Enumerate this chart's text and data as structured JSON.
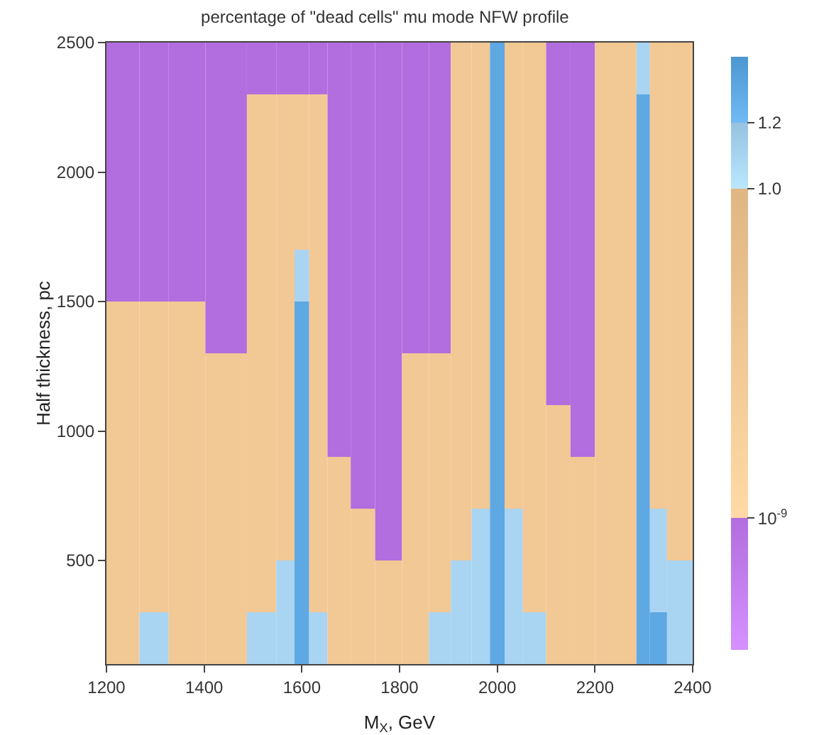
{
  "chart_data": {
    "type": "heatmap",
    "title": "percentage of \"dead cells\" mu mode NFW profile",
    "xlabel": "M$_{X}$, GeV",
    "ylabel": "Half thickness, pc",
    "x": [
      1235,
      1300,
      1355,
      1450,
      1525,
      1570,
      1600,
      1630,
      1675,
      1725,
      1775,
      1835,
      1885,
      1925,
      1970,
      2000,
      2030,
      2075,
      2125,
      2175,
      2225,
      2270,
      2300,
      2325,
      2370
    ],
    "y": [
      2400,
      2200,
      2000,
      1800,
      1600,
      1400,
      1200,
      1000,
      800,
      600,
      400,
      200
    ],
    "cells": [
      [
        0,
        0,
        0,
        0,
        0,
        0,
        0,
        0,
        0,
        0,
        0,
        0,
        0,
        0.5,
        0.5,
        1.3,
        0.5,
        0.5,
        0,
        0,
        0.5,
        0.5,
        1.1,
        0.5,
        0.5
      ],
      [
        0,
        0,
        0,
        0,
        0.5,
        0.5,
        0.5,
        0.5,
        0,
        0,
        0,
        0,
        0,
        0.5,
        0.5,
        1.3,
        0.5,
        0.5,
        0,
        0,
        0.5,
        0.5,
        1.3,
        0.5,
        0.5
      ],
      [
        0,
        0,
        0,
        0,
        0.5,
        0.5,
        0.5,
        0.5,
        0,
        0,
        0,
        0,
        0,
        0.5,
        0.5,
        1.3,
        0.5,
        0.5,
        0,
        0,
        0.5,
        0.5,
        1.3,
        0.5,
        0.5
      ],
      [
        0,
        0,
        0,
        0,
        0.5,
        0.5,
        0.5,
        0.5,
        0,
        0,
        0,
        0,
        0,
        0.5,
        0.5,
        1.3,
        0.5,
        0.5,
        0,
        0,
        0.5,
        0.5,
        1.3,
        0.5,
        0.5
      ],
      [
        0,
        0,
        0,
        0,
        0.5,
        0.5,
        1.1,
        0.5,
        0,
        0,
        0,
        0,
        0,
        0.5,
        0.5,
        1.3,
        0.5,
        0.5,
        0,
        0,
        0.5,
        0.5,
        1.3,
        0.5,
        0.5
      ],
      [
        0.5,
        0.5,
        0.5,
        0,
        0.5,
        0.5,
        1.3,
        0.5,
        0,
        0,
        0,
        0,
        0,
        0.5,
        0.5,
        1.3,
        0.5,
        0.5,
        0,
        0,
        0.5,
        0.5,
        1.3,
        0.5,
        0.5
      ],
      [
        0.5,
        0.5,
        0.5,
        0.5,
        0.5,
        0.5,
        1.3,
        0.5,
        0,
        0,
        0,
        0.5,
        0.5,
        0.5,
        0.5,
        1.3,
        0.5,
        0.5,
        0,
        0,
        0.5,
        0.5,
        1.3,
        0.5,
        0.5
      ],
      [
        0.5,
        0.5,
        0.5,
        0.5,
        0.5,
        0.5,
        1.3,
        0.5,
        0,
        0,
        0,
        0.5,
        0.5,
        0.5,
        0.5,
        1.3,
        0.5,
        0.5,
        0.5,
        0,
        0.5,
        0.5,
        1.3,
        0.5,
        0.5
      ],
      [
        0.5,
        0.5,
        0.5,
        0.5,
        0.5,
        0.5,
        1.3,
        0.5,
        0.5,
        0,
        0,
        0.5,
        0.5,
        0.5,
        0.5,
        1.3,
        0.5,
        0.5,
        0.5,
        0.5,
        0.5,
        0.5,
        1.3,
        0.5,
        0.5
      ],
      [
        0.5,
        0.5,
        0.5,
        0.5,
        0.5,
        0.5,
        1.3,
        0.5,
        0.5,
        0.5,
        0,
        0.5,
        0.5,
        0.5,
        1.1,
        1.3,
        1.1,
        0.5,
        0.5,
        0.5,
        0.5,
        0.5,
        1.3,
        1.1,
        0.5
      ],
      [
        0.5,
        0.5,
        0.5,
        0.5,
        0.5,
        1.1,
        1.3,
        0.5,
        0.5,
        0.5,
        0.5,
        0.5,
        0.5,
        1.1,
        1.1,
        1.3,
        1.1,
        0.5,
        0.5,
        0.5,
        0.5,
        0.5,
        1.3,
        1.1,
        1.1
      ],
      [
        0.5,
        1.1,
        0.5,
        0.5,
        1.1,
        1.1,
        1.3,
        1.1,
        0.5,
        0.5,
        0.5,
        0.5,
        1.1,
        1.1,
        1.1,
        1.3,
        1.1,
        1.1,
        0.5,
        0.5,
        0.5,
        0.5,
        1.3,
        1.3,
        1.1
      ]
    ],
    "colors": [
      "#c47ff0",
      "#f2c894",
      "#a9d4f2",
      "#5ea8e4"
    ],
    "clim": [
      -0.4,
      1.4
    ],
    "cticks": [
      {
        "value": 1e-09,
        "label": "10$^{-9}$"
      },
      {
        "value": 1.0,
        "label": "1.0"
      },
      {
        "value": 1.2,
        "label": "1.2"
      }
    ],
    "xlim": [
      1200,
      2400
    ],
    "ylim": [
      100,
      2500
    ],
    "xticks": [
      1200,
      1400,
      1600,
      1800,
      2000,
      2200,
      2400
    ],
    "yticks": [
      500,
      1000,
      1500,
      2000,
      2500
    ],
    "grid": false
  }
}
